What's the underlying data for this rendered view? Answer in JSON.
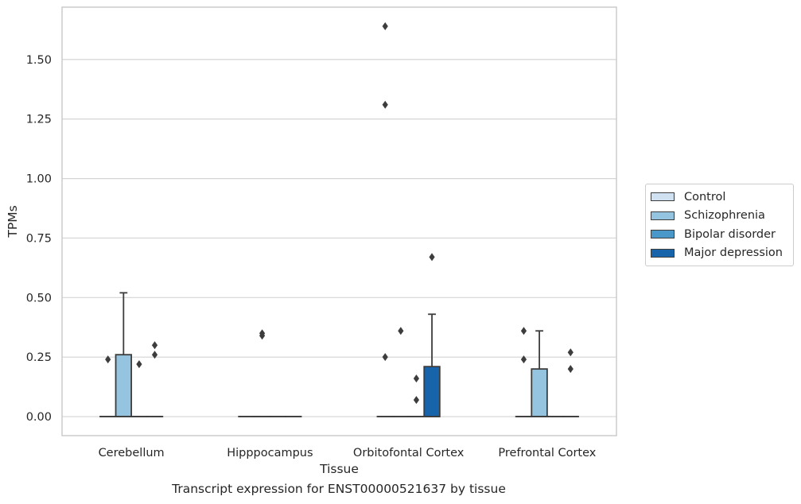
{
  "caption": "Transcript expression for ENST00000521637 by tissue",
  "chart_data": {
    "type": "box",
    "xlabel": "Tissue",
    "ylabel": "TPMs",
    "ylim": [
      -0.08,
      1.72
    ],
    "yticks": [
      "0.00",
      "0.25",
      "0.50",
      "0.75",
      "1.00",
      "1.25",
      "1.50"
    ],
    "grid": true,
    "legend_position": "right",
    "categories": [
      "Cerebellum",
      "Hipppocampus",
      "Orbitofontal Cortex",
      "Prefrontal Cortex"
    ],
    "series": [
      {
        "name": "Control",
        "color": "#d0e1f2",
        "boxes": [
          {
            "q1": 0,
            "median": 0,
            "q3": 0,
            "whislo": 0,
            "whishi": 0,
            "fliers": [
              0.24
            ]
          },
          {
            "q1": 0,
            "median": 0,
            "q3": 0,
            "whislo": 0,
            "whishi": 0,
            "fliers": []
          },
          {
            "q1": 0,
            "median": 0,
            "q3": 0,
            "whislo": 0,
            "whishi": 0,
            "fliers": [
              0.25,
              1.31,
              1.64
            ]
          },
          {
            "q1": 0,
            "median": 0,
            "q3": 0,
            "whislo": 0,
            "whishi": 0,
            "fliers": [
              0.24,
              0.36
            ]
          }
        ]
      },
      {
        "name": "Schizophrenia",
        "color": "#94c4df",
        "boxes": [
          {
            "q1": 0,
            "median": 0,
            "q3": 0.26,
            "whislo": 0,
            "whishi": 0.52,
            "fliers": []
          },
          {
            "q1": 0,
            "median": 0,
            "q3": 0,
            "whislo": 0,
            "whishi": 0,
            "fliers": [
              0.34,
              0.35
            ]
          },
          {
            "q1": 0,
            "median": 0,
            "q3": 0,
            "whislo": 0,
            "whishi": 0,
            "fliers": [
              0.36
            ]
          },
          {
            "q1": 0,
            "median": 0,
            "q3": 0.2,
            "whislo": 0,
            "whishi": 0.36,
            "fliers": []
          }
        ]
      },
      {
        "name": "Bipolar disorder",
        "color": "#4a98c9",
        "boxes": [
          {
            "q1": 0,
            "median": 0,
            "q3": 0,
            "whislo": 0,
            "whishi": 0,
            "fliers": [
              0.22
            ]
          },
          {
            "q1": 0,
            "median": 0,
            "q3": 0,
            "whislo": 0,
            "whishi": 0,
            "fliers": []
          },
          {
            "q1": 0,
            "median": 0,
            "q3": 0,
            "whislo": 0,
            "whishi": 0,
            "fliers": [
              0.07,
              0.16
            ]
          },
          {
            "q1": 0,
            "median": 0,
            "q3": 0,
            "whislo": 0,
            "whishi": 0,
            "fliers": []
          }
        ]
      },
      {
        "name": "Major depression",
        "color": "#1764ab",
        "boxes": [
          {
            "q1": 0,
            "median": 0,
            "q3": 0,
            "whislo": 0,
            "whishi": 0,
            "fliers": [
              0.26,
              0.3
            ]
          },
          {
            "q1": 0,
            "median": 0,
            "q3": 0,
            "whislo": 0,
            "whishi": 0,
            "fliers": []
          },
          {
            "q1": 0,
            "median": 0,
            "q3": 0.21,
            "whislo": 0,
            "whishi": 0.43,
            "fliers": [
              0.67
            ]
          },
          {
            "q1": 0,
            "median": 0,
            "q3": 0,
            "whislo": 0,
            "whishi": 0,
            "fliers": [
              0.2,
              0.27
            ]
          }
        ]
      }
    ]
  }
}
